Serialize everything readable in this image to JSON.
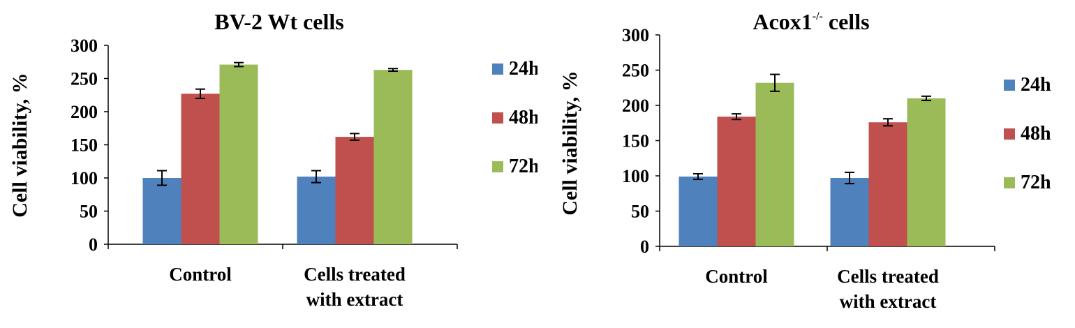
{
  "chart_data": [
    {
      "type": "bar",
      "title": "BV-2 Wt cells",
      "ylabel": "Cell viability, %",
      "xlabel": "",
      "ylim": [
        0,
        300
      ],
      "yticks": [
        "0",
        "50",
        "100",
        "150",
        "200",
        "250",
        "300"
      ],
      "categories": [
        "Control",
        "Cells treated\nwith extract"
      ],
      "series": [
        {
          "name": "24h",
          "color": "#4f81bd",
          "values": [
            100,
            102
          ],
          "errors": [
            11,
            9
          ]
        },
        {
          "name": "48h",
          "color": "#c0504d",
          "values": [
            227,
            162
          ],
          "errors": [
            7,
            5
          ]
        },
        {
          "name": "72h",
          "color": "#9bbb59",
          "values": [
            271,
            263
          ],
          "errors": [
            3,
            2
          ]
        }
      ],
      "legend": "right"
    },
    {
      "type": "bar",
      "title_main": "Acox1",
      "title_sup": "-/-",
      "title_rest": " cells",
      "ylabel": "Cell viability, %",
      "xlabel": "",
      "ylim": [
        0,
        300
      ],
      "yticks": [
        "0",
        "50",
        "100",
        "150",
        "200",
        "250",
        "300"
      ],
      "categories": [
        "Control",
        "Cells treated\nwith extract"
      ],
      "series": [
        {
          "name": "24h",
          "color": "#4f81bd",
          "values": [
            99,
            97
          ],
          "errors": [
            4,
            8
          ]
        },
        {
          "name": "48h",
          "color": "#c0504d",
          "values": [
            184,
            176
          ],
          "errors": [
            4,
            5
          ]
        },
        {
          "name": "72h",
          "color": "#9bbb59",
          "values": [
            232,
            210
          ],
          "errors": [
            12,
            3
          ]
        }
      ],
      "legend": "right"
    }
  ]
}
